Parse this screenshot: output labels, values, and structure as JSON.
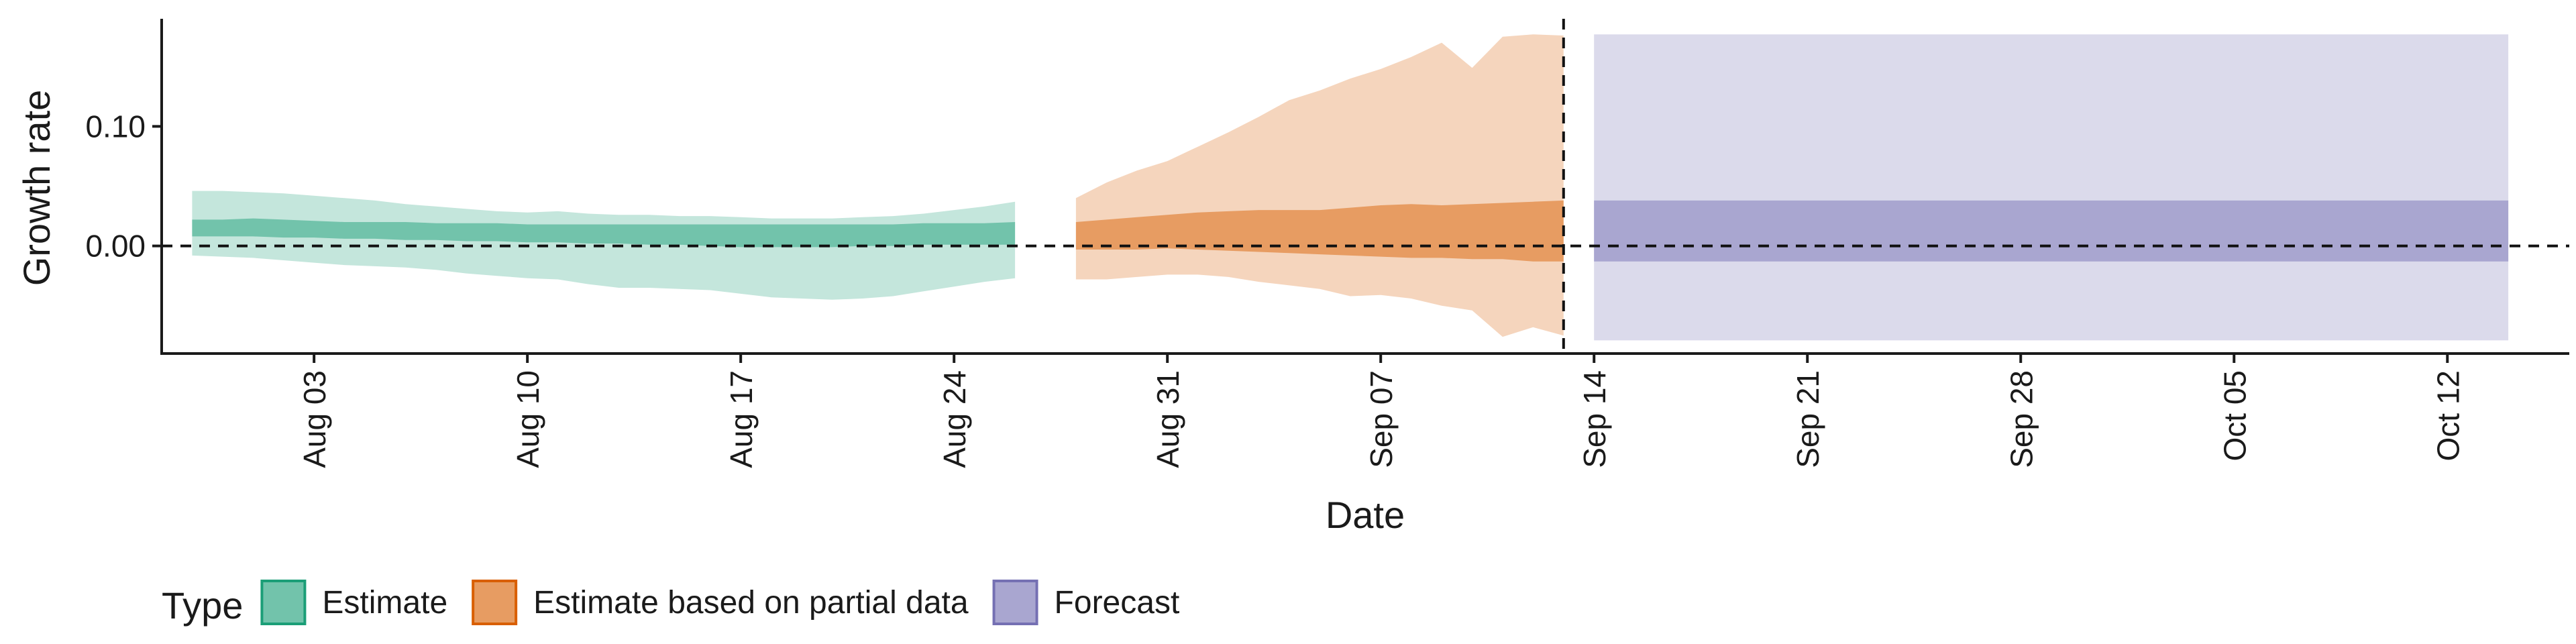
{
  "chart_data": {
    "type": "area",
    "xlabel": "Date",
    "ylabel": "Growth rate",
    "x_tick_labels": [
      "Aug 03",
      "Aug 10",
      "Aug 17",
      "Aug 24",
      "Aug 31",
      "Sep 07",
      "Sep 14",
      "Sep 21",
      "Sep 28",
      "Oct 05",
      "Oct 12"
    ],
    "x_tick_dates": [
      "2020-08-03",
      "2020-08-10",
      "2020-08-17",
      "2020-08-24",
      "2020-08-31",
      "2020-09-07",
      "2020-09-14",
      "2020-09-21",
      "2020-09-28",
      "2020-10-05",
      "2020-10-12"
    ],
    "y_ticks": [
      0.0,
      0.1
    ],
    "y_tick_labels": [
      "0.00",
      "0.10"
    ],
    "xlim": [
      "2020-07-29",
      "2020-10-16"
    ],
    "ylim": [
      -0.09,
      0.19
    ],
    "reference_lines": [
      {
        "axis": "y",
        "value": 0,
        "style": "dashed"
      },
      {
        "axis": "x",
        "value": "2020-09-13",
        "style": "dashed"
      }
    ],
    "grid": false,
    "legend": {
      "title": "Type",
      "placement": "bottom-left",
      "entries": [
        {
          "label": "Estimate",
          "color": "#1b9e77"
        },
        {
          "label": "Estimate based on partial data",
          "color": "#d95f02"
        },
        {
          "label": "Forecast",
          "color": "#7570b3"
        }
      ]
    },
    "series": [
      {
        "name": "Estimate",
        "color": "#1b9e77",
        "x": [
          "2020-07-30",
          "2020-07-31",
          "2020-08-01",
          "2020-08-02",
          "2020-08-03",
          "2020-08-04",
          "2020-08-05",
          "2020-08-06",
          "2020-08-07",
          "2020-08-08",
          "2020-08-09",
          "2020-08-10",
          "2020-08-11",
          "2020-08-12",
          "2020-08-13",
          "2020-08-14",
          "2020-08-15",
          "2020-08-16",
          "2020-08-17",
          "2020-08-18",
          "2020-08-19",
          "2020-08-20",
          "2020-08-21",
          "2020-08-22",
          "2020-08-23",
          "2020-08-24",
          "2020-08-25",
          "2020-08-26"
        ],
        "lower_90": [
          -0.008,
          -0.009,
          -0.01,
          -0.012,
          -0.014,
          -0.016,
          -0.017,
          -0.018,
          -0.02,
          -0.023,
          -0.025,
          -0.027,
          -0.028,
          -0.032,
          -0.035,
          -0.035,
          -0.036,
          -0.037,
          -0.04,
          -0.043,
          -0.044,
          -0.045,
          -0.044,
          -0.042,
          -0.038,
          -0.034,
          -0.03,
          -0.027
        ],
        "upper_90": [
          0.046,
          0.046,
          0.045,
          0.044,
          0.042,
          0.04,
          0.038,
          0.035,
          0.033,
          0.031,
          0.029,
          0.028,
          0.029,
          0.027,
          0.026,
          0.026,
          0.025,
          0.025,
          0.024,
          0.023,
          0.023,
          0.023,
          0.024,
          0.025,
          0.027,
          0.03,
          0.033,
          0.037
        ],
        "lower_50": [
          0.008,
          0.008,
          0.008,
          0.007,
          0.007,
          0.006,
          0.006,
          0.005,
          0.005,
          0.004,
          0.004,
          0.003,
          0.003,
          0.002,
          0.002,
          0.001,
          0.001,
          0.0,
          -0.001,
          -0.001,
          -0.001,
          -0.001,
          0.0,
          0.0,
          0.001,
          0.001,
          0.001,
          0.001
        ],
        "upper_50": [
          0.022,
          0.022,
          0.023,
          0.022,
          0.021,
          0.02,
          0.02,
          0.02,
          0.019,
          0.019,
          0.019,
          0.018,
          0.018,
          0.018,
          0.018,
          0.018,
          0.018,
          0.018,
          0.018,
          0.018,
          0.018,
          0.018,
          0.018,
          0.018,
          0.019,
          0.019,
          0.019,
          0.02
        ]
      },
      {
        "name": "Estimate based on partial data",
        "color": "#d95f02",
        "x": [
          "2020-08-28",
          "2020-08-29",
          "2020-08-30",
          "2020-08-31",
          "2020-09-01",
          "2020-09-02",
          "2020-09-03",
          "2020-09-04",
          "2020-09-05",
          "2020-09-06",
          "2020-09-07",
          "2020-09-08",
          "2020-09-09",
          "2020-09-10",
          "2020-09-11",
          "2020-09-12",
          "2020-09-13"
        ],
        "lower_90": [
          -0.028,
          -0.028,
          -0.026,
          -0.024,
          -0.024,
          -0.026,
          -0.03,
          -0.033,
          -0.036,
          -0.042,
          -0.041,
          -0.044,
          -0.05,
          -0.054,
          -0.076,
          -0.068,
          -0.075
        ],
        "upper_90": [
          0.04,
          0.053,
          0.063,
          0.071,
          0.083,
          0.095,
          0.108,
          0.122,
          0.13,
          0.14,
          0.148,
          0.158,
          0.17,
          0.149,
          0.175,
          0.177,
          0.176
        ],
        "lower_50": [
          -0.003,
          -0.003,
          -0.003,
          -0.002,
          -0.003,
          -0.004,
          -0.005,
          -0.006,
          -0.007,
          -0.008,
          -0.009,
          -0.01,
          -0.01,
          -0.011,
          -0.011,
          -0.013,
          -0.013
        ],
        "upper_50": [
          0.02,
          0.022,
          0.024,
          0.026,
          0.028,
          0.029,
          0.03,
          0.03,
          0.03,
          0.032,
          0.034,
          0.035,
          0.034,
          0.035,
          0.036,
          0.037,
          0.038
        ]
      },
      {
        "name": "Forecast",
        "color": "#7570b3",
        "x": [
          "2020-09-14",
          "2020-10-14"
        ],
        "lower_90": [
          -0.079,
          -0.079
        ],
        "upper_90": [
          0.177,
          0.177
        ],
        "lower_50": [
          -0.013,
          -0.013
        ],
        "upper_50": [
          0.038,
          0.038
        ]
      }
    ]
  }
}
